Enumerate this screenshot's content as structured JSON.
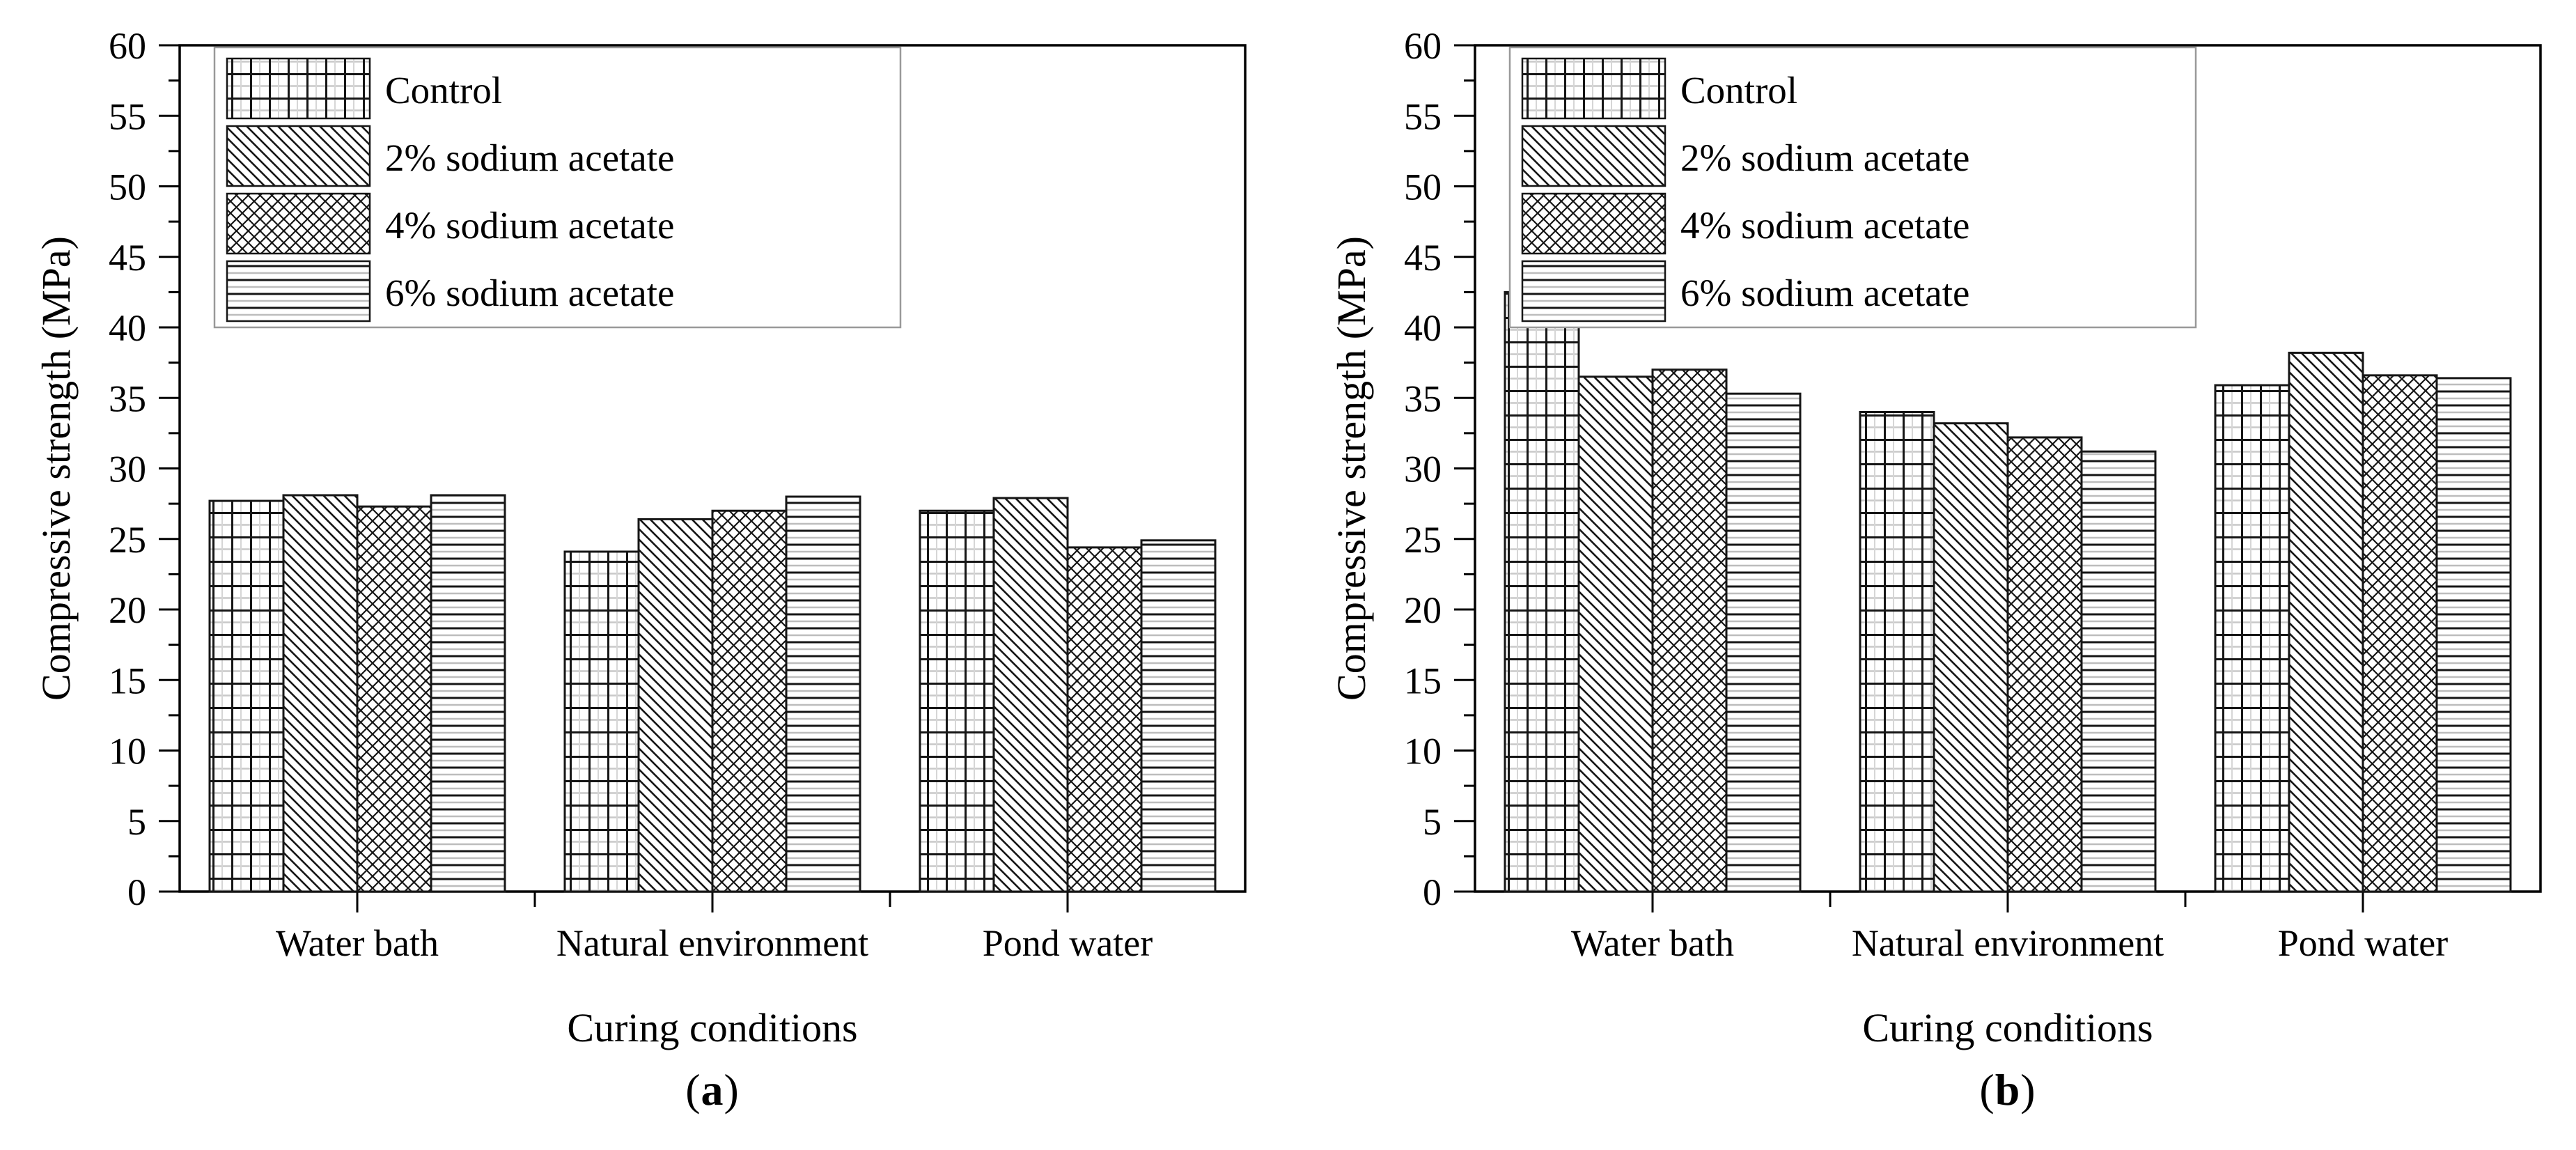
{
  "page": {
    "background": "#ffffff",
    "ink": "#161616",
    "frame_color": "#000000",
    "legend_border_color": "#999999"
  },
  "captions": [
    {
      "open": "(",
      "letter": "a",
      "close": ")"
    },
    {
      "open": "(",
      "letter": "b",
      "close": ")"
    }
  ],
  "chart_data": [
    {
      "type": "bar",
      "panel": "a",
      "title": "",
      "xlabel": "Curing conditions",
      "ylabel": "Compressive strength (MPa)",
      "categories": [
        "Water bath",
        "Natural environment",
        "Pond water"
      ],
      "series": [
        {
          "name": "Control",
          "pattern": "grid",
          "values": [
            27.7,
            24.1,
            27.0
          ]
        },
        {
          "name": "2% sodium acetate",
          "pattern": "diagonal-left",
          "values": [
            28.1,
            26.4,
            27.9
          ]
        },
        {
          "name": "4% sodium acetate",
          "pattern": "diamond-crosshatch",
          "values": [
            27.3,
            27.0,
            24.4
          ]
        },
        {
          "name": "6% sodium acetate",
          "pattern": "horizontal-lines",
          "values": [
            28.1,
            28.0,
            24.9
          ]
        }
      ],
      "ylim": [
        0,
        60
      ],
      "y_ticks": [
        0,
        5,
        10,
        15,
        20,
        25,
        30,
        35,
        40,
        45,
        50,
        55,
        60
      ],
      "y_minor_step": 2.5,
      "grid": false,
      "legend_position": "top-left"
    },
    {
      "type": "bar",
      "panel": "b",
      "title": "",
      "xlabel": "Curing conditions",
      "ylabel": "Compressive strength (MPa)",
      "categories": [
        "Water bath",
        "Natural environment",
        "Pond water"
      ],
      "series": [
        {
          "name": "Control",
          "pattern": "grid",
          "values": [
            42.5,
            34.0,
            35.9
          ]
        },
        {
          "name": "2% sodium acetate",
          "pattern": "diagonal-left",
          "values": [
            36.5,
            33.2,
            38.2
          ]
        },
        {
          "name": "4% sodium acetate",
          "pattern": "diamond-crosshatch",
          "values": [
            37.0,
            32.2,
            36.6
          ]
        },
        {
          "name": "6% sodium acetate",
          "pattern": "horizontal-lines",
          "values": [
            35.3,
            31.2,
            36.4
          ]
        }
      ],
      "ylim": [
        0,
        60
      ],
      "y_ticks": [
        0,
        5,
        10,
        15,
        20,
        25,
        30,
        35,
        40,
        45,
        50,
        55,
        60
      ],
      "y_minor_step": 2.5,
      "grid": false,
      "legend_position": "top-left"
    }
  ]
}
